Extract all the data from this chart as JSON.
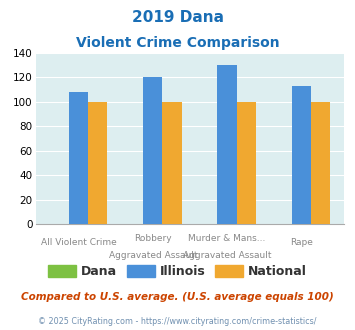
{
  "title_line1": "2019 Dana",
  "title_line2": "Violent Crime Comparison",
  "categories_row1": [
    "",
    "Robbery",
    "Murder & Mans...",
    ""
  ],
  "categories_row2": [
    "All Violent Crime",
    "Aggravated Assault",
    "Aggravated Assault",
    "Rape"
  ],
  "series": {
    "Dana": [
      0,
      0,
      0,
      0
    ],
    "Illinois": [
      108,
      120,
      130,
      113
    ],
    "National": [
      100,
      100,
      100,
      100
    ]
  },
  "colors": {
    "Dana": "#7dc142",
    "Illinois": "#4a90d9",
    "National": "#f0a830"
  },
  "ylim": [
    0,
    140
  ],
  "yticks": [
    0,
    20,
    40,
    60,
    80,
    100,
    120,
    140
  ],
  "bar_width": 0.26,
  "plot_bg": "#ddeef0",
  "title_color": "#1a6eb5",
  "label_color": "#888888",
  "legend_label_color": "#333333",
  "footnote1": "Compared to U.S. average. (U.S. average equals 100)",
  "footnote2": "© 2025 CityRating.com - https://www.cityrating.com/crime-statistics/",
  "footnote1_color": "#cc4400",
  "footnote2_color": "#7090b0"
}
